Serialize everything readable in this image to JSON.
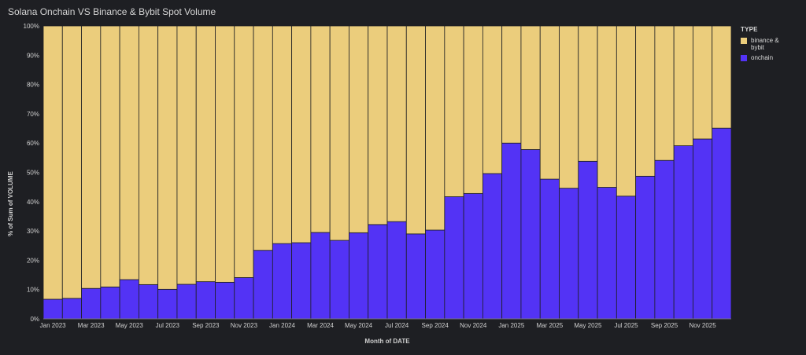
{
  "chart_data": {
    "type": "bar",
    "stacked": true,
    "title": "Solana Onchain VS Binance & Bybit Spot Volume",
    "xlabel": "Month of DATE",
    "ylabel": "% of Sum of VOLUME",
    "ylim": [
      0,
      100
    ],
    "yticks": [
      "0%",
      "10%",
      "20%",
      "30%",
      "40%",
      "50%",
      "60%",
      "70%",
      "80%",
      "90%",
      "100%"
    ],
    "categories": [
      "Jan 2023",
      "Feb 2023",
      "Mar 2023",
      "Apr 2023",
      "May 2023",
      "Jun 2023",
      "Jul 2023",
      "Aug 2023",
      "Sep 2023",
      "Oct 2023",
      "Nov 2023",
      "Dec 2023",
      "Jan 2024",
      "Feb 2024",
      "Mar 2024",
      "Apr 2024",
      "May 2024",
      "Jun 2024",
      "Jul 2024",
      "Aug 2024",
      "Sep 2024",
      "Oct 2024",
      "Nov 2024",
      "Dec 2024",
      "Jan 2025",
      "Feb 2025",
      "Mar 2025",
      "Apr 2025",
      "May 2025",
      "Jun 2025",
      "Jul 2025",
      "Aug 2025",
      "Sep 2025",
      "Oct 2025",
      "Nov 2025",
      "Dec 2025"
    ],
    "xtick_labels": [
      "Jan 2023",
      "",
      "Mar 2023",
      "",
      "May 2023",
      "",
      "Jul 2023",
      "",
      "Sep 2023",
      "",
      "Nov 2023",
      "",
      "Jan 2024",
      "",
      "Mar 2024",
      "",
      "May 2024",
      "",
      "Jul 2024",
      "",
      "Sep 2024",
      "",
      "Nov 2024",
      "",
      "Jan 2025",
      "",
      "Mar 2025",
      "",
      "May 2025",
      "",
      "Jul 2025",
      "",
      "Sep 2025",
      "",
      "Nov 2025",
      ""
    ],
    "legend": {
      "title": "TYPE",
      "position": "right",
      "items": [
        {
          "label": "binance & bybit",
          "color": "#ebcd7c"
        },
        {
          "label": "onchain",
          "color": "#5333f5"
        }
      ]
    },
    "series": [
      {
        "name": "binance & bybit",
        "color": "#ebcd7c",
        "values": [
          93.3,
          93.0,
          89.6,
          89.1,
          86.6,
          88.3,
          89.9,
          88.2,
          87.3,
          87.5,
          85.9,
          76.6,
          74.3,
          74.0,
          70.5,
          73.2,
          70.6,
          67.8,
          66.8,
          71.0,
          69.7,
          58.3,
          57.2,
          50.4,
          40.0,
          42.2,
          52.3,
          55.4,
          46.2,
          55.1,
          58.1,
          51.3,
          45.9,
          40.9,
          38.6,
          34.9
        ]
      },
      {
        "name": "onchain",
        "color": "#5333f5",
        "values": [
          6.7,
          7.0,
          10.4,
          10.9,
          13.4,
          11.7,
          10.1,
          11.8,
          12.7,
          12.5,
          14.1,
          23.4,
          25.7,
          26.0,
          29.5,
          26.8,
          29.4,
          32.2,
          33.2,
          29.0,
          30.3,
          41.7,
          42.8,
          49.6,
          60.0,
          57.8,
          47.7,
          44.6,
          53.8,
          44.9,
          41.9,
          48.7,
          54.1,
          59.1,
          61.4,
          65.1
        ]
      }
    ]
  }
}
